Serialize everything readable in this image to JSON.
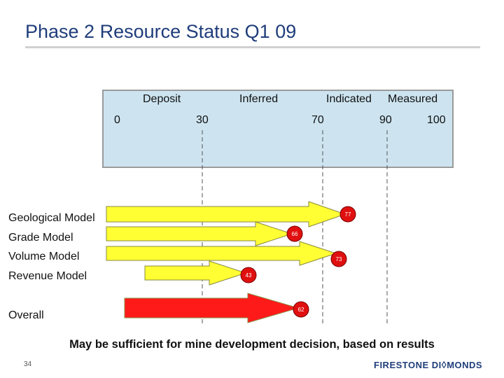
{
  "title": "Phase 2 Resource Status Q1 09",
  "scale": {
    "categories": [
      "Deposit",
      "Inferred",
      "Indicated",
      "Measured"
    ],
    "ticks": [
      "0",
      "30",
      "70",
      "90",
      "100"
    ]
  },
  "chart_data": {
    "type": "bar",
    "title": "Phase 2 Resource Status Q1 09",
    "scale_range": [
      0,
      100
    ],
    "scale_ticks": [
      0,
      30,
      70,
      90,
      100
    ],
    "categories": [
      "Geological Model",
      "Grade Model",
      "Volume Model",
      "Revenue Model",
      "Overall"
    ],
    "values": [
      77,
      66,
      73,
      43,
      62
    ],
    "colors": [
      "#ffff33",
      "#ffff33",
      "#ffff33",
      "#ffff33",
      "#ff1a1a"
    ]
  },
  "markers": [
    "77",
    "66",
    "73",
    "43",
    "62"
  ],
  "colors": {
    "title": "#1f3d7a",
    "box": "#cde4f0",
    "arrow": "#ffff33",
    "overall_arrow": "#ff1a1a",
    "marker": "#e01010"
  },
  "conclusion": "May be sufficient for mine development decision, based on results",
  "page_number": "34",
  "logo_text": "FIRESTONE DIAMONDS"
}
